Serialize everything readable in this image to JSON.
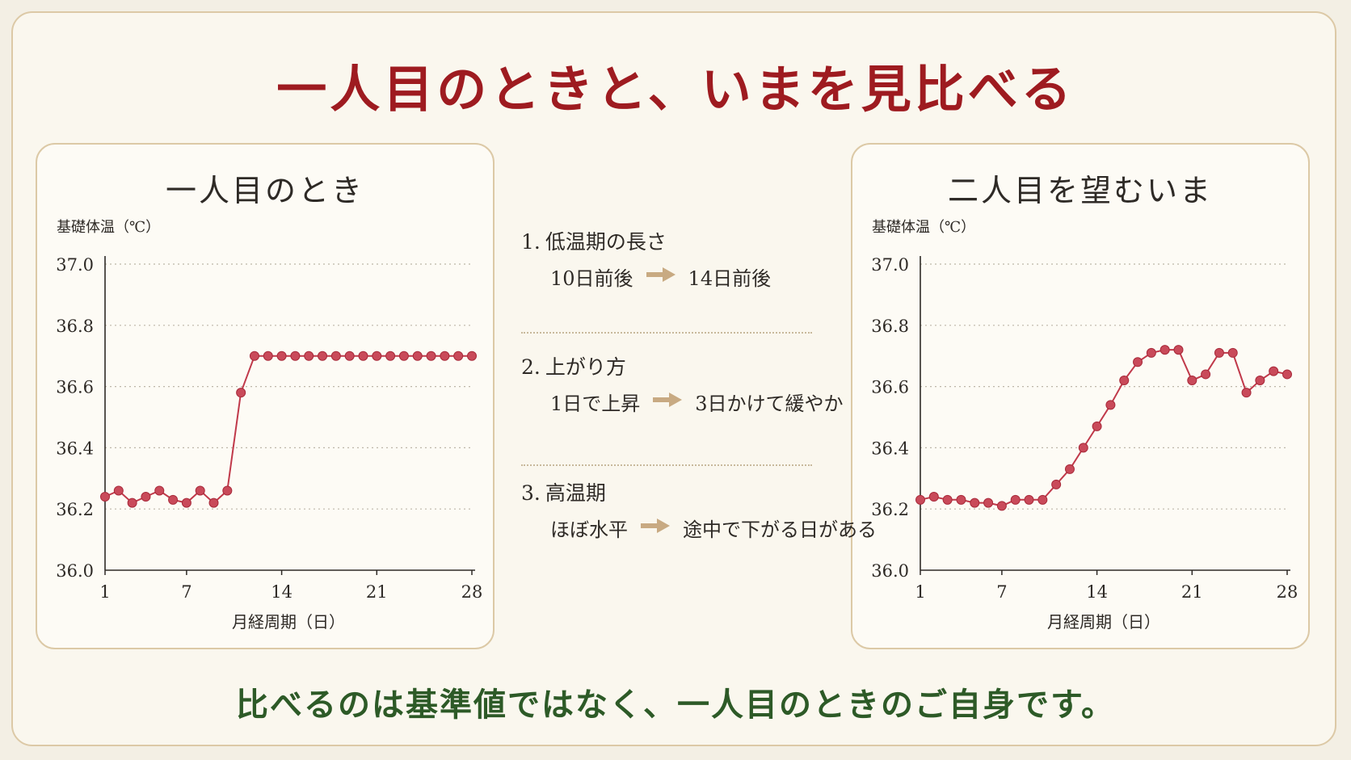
{
  "title": "一人目のときと、いまを見比べる",
  "footer": "比べるのは基準値ではなく、一人目のときのご自身です。",
  "colors": {
    "title": "#9e1b20",
    "footer": "#2d5a27",
    "line": "#c0394a",
    "marker": "#c94a5a",
    "arrow": "#c8aa82",
    "border": "#dcc9a6"
  },
  "comparison": [
    {
      "number": "1.",
      "heading": "低温期の長さ",
      "before": "10日前後",
      "arrow_icon": "arrow-right-icon",
      "after": "14日前後"
    },
    {
      "number": "2.",
      "heading": "上がり方",
      "before": "1日で上昇",
      "arrow_icon": "arrow-right-icon",
      "after": "3日かけて緩やか"
    },
    {
      "number": "3.",
      "heading": "高温期",
      "before": "ほぼ水平",
      "arrow_icon": "arrow-right-icon",
      "after": "途中で下がる日がある"
    }
  ],
  "chart_data": [
    {
      "type": "line",
      "title": "一人目のとき",
      "ylabel": "基礎体温（℃）",
      "xlabel": "月経周期（日）",
      "ylim": [
        36.0,
        37.0
      ],
      "xlim": [
        1,
        28
      ],
      "yticks": [
        "36.0",
        "36.2",
        "36.4",
        "36.6",
        "36.8",
        "37.0"
      ],
      "xticks": [
        "1",
        "7",
        "14",
        "21",
        "28"
      ],
      "grid": true,
      "x": [
        1,
        2,
        3,
        4,
        5,
        6,
        7,
        8,
        9,
        10,
        11,
        12,
        13,
        14,
        15,
        16,
        17,
        18,
        19,
        20,
        21,
        22,
        23,
        24,
        25,
        26,
        27,
        28
      ],
      "values": [
        36.24,
        36.26,
        36.22,
        36.24,
        36.26,
        36.23,
        36.22,
        36.26,
        36.22,
        36.26,
        36.58,
        36.7,
        36.7,
        36.7,
        36.7,
        36.7,
        36.7,
        36.7,
        36.7,
        36.7,
        36.7,
        36.7,
        36.7,
        36.7,
        36.7,
        36.7,
        36.7,
        36.7
      ]
    },
    {
      "type": "line",
      "title": "二人目を望むいま",
      "ylabel": "基礎体温（℃）",
      "xlabel": "月経周期（日）",
      "ylim": [
        36.0,
        37.0
      ],
      "xlim": [
        1,
        28
      ],
      "yticks": [
        "36.0",
        "36.2",
        "36.4",
        "36.6",
        "36.8",
        "37.0"
      ],
      "xticks": [
        "1",
        "7",
        "14",
        "21",
        "28"
      ],
      "grid": true,
      "x": [
        1,
        2,
        3,
        4,
        5,
        6,
        7,
        8,
        9,
        10,
        11,
        12,
        13,
        14,
        15,
        16,
        17,
        18,
        19,
        20,
        21,
        22,
        23,
        24,
        25,
        26,
        27,
        28
      ],
      "values": [
        36.23,
        36.24,
        36.23,
        36.23,
        36.22,
        36.22,
        36.21,
        36.23,
        36.23,
        36.23,
        36.28,
        36.33,
        36.4,
        36.47,
        36.54,
        36.62,
        36.68,
        36.71,
        36.72,
        36.72,
        36.62,
        36.64,
        36.71,
        36.71,
        36.58,
        36.62,
        36.65,
        36.64
      ]
    }
  ]
}
